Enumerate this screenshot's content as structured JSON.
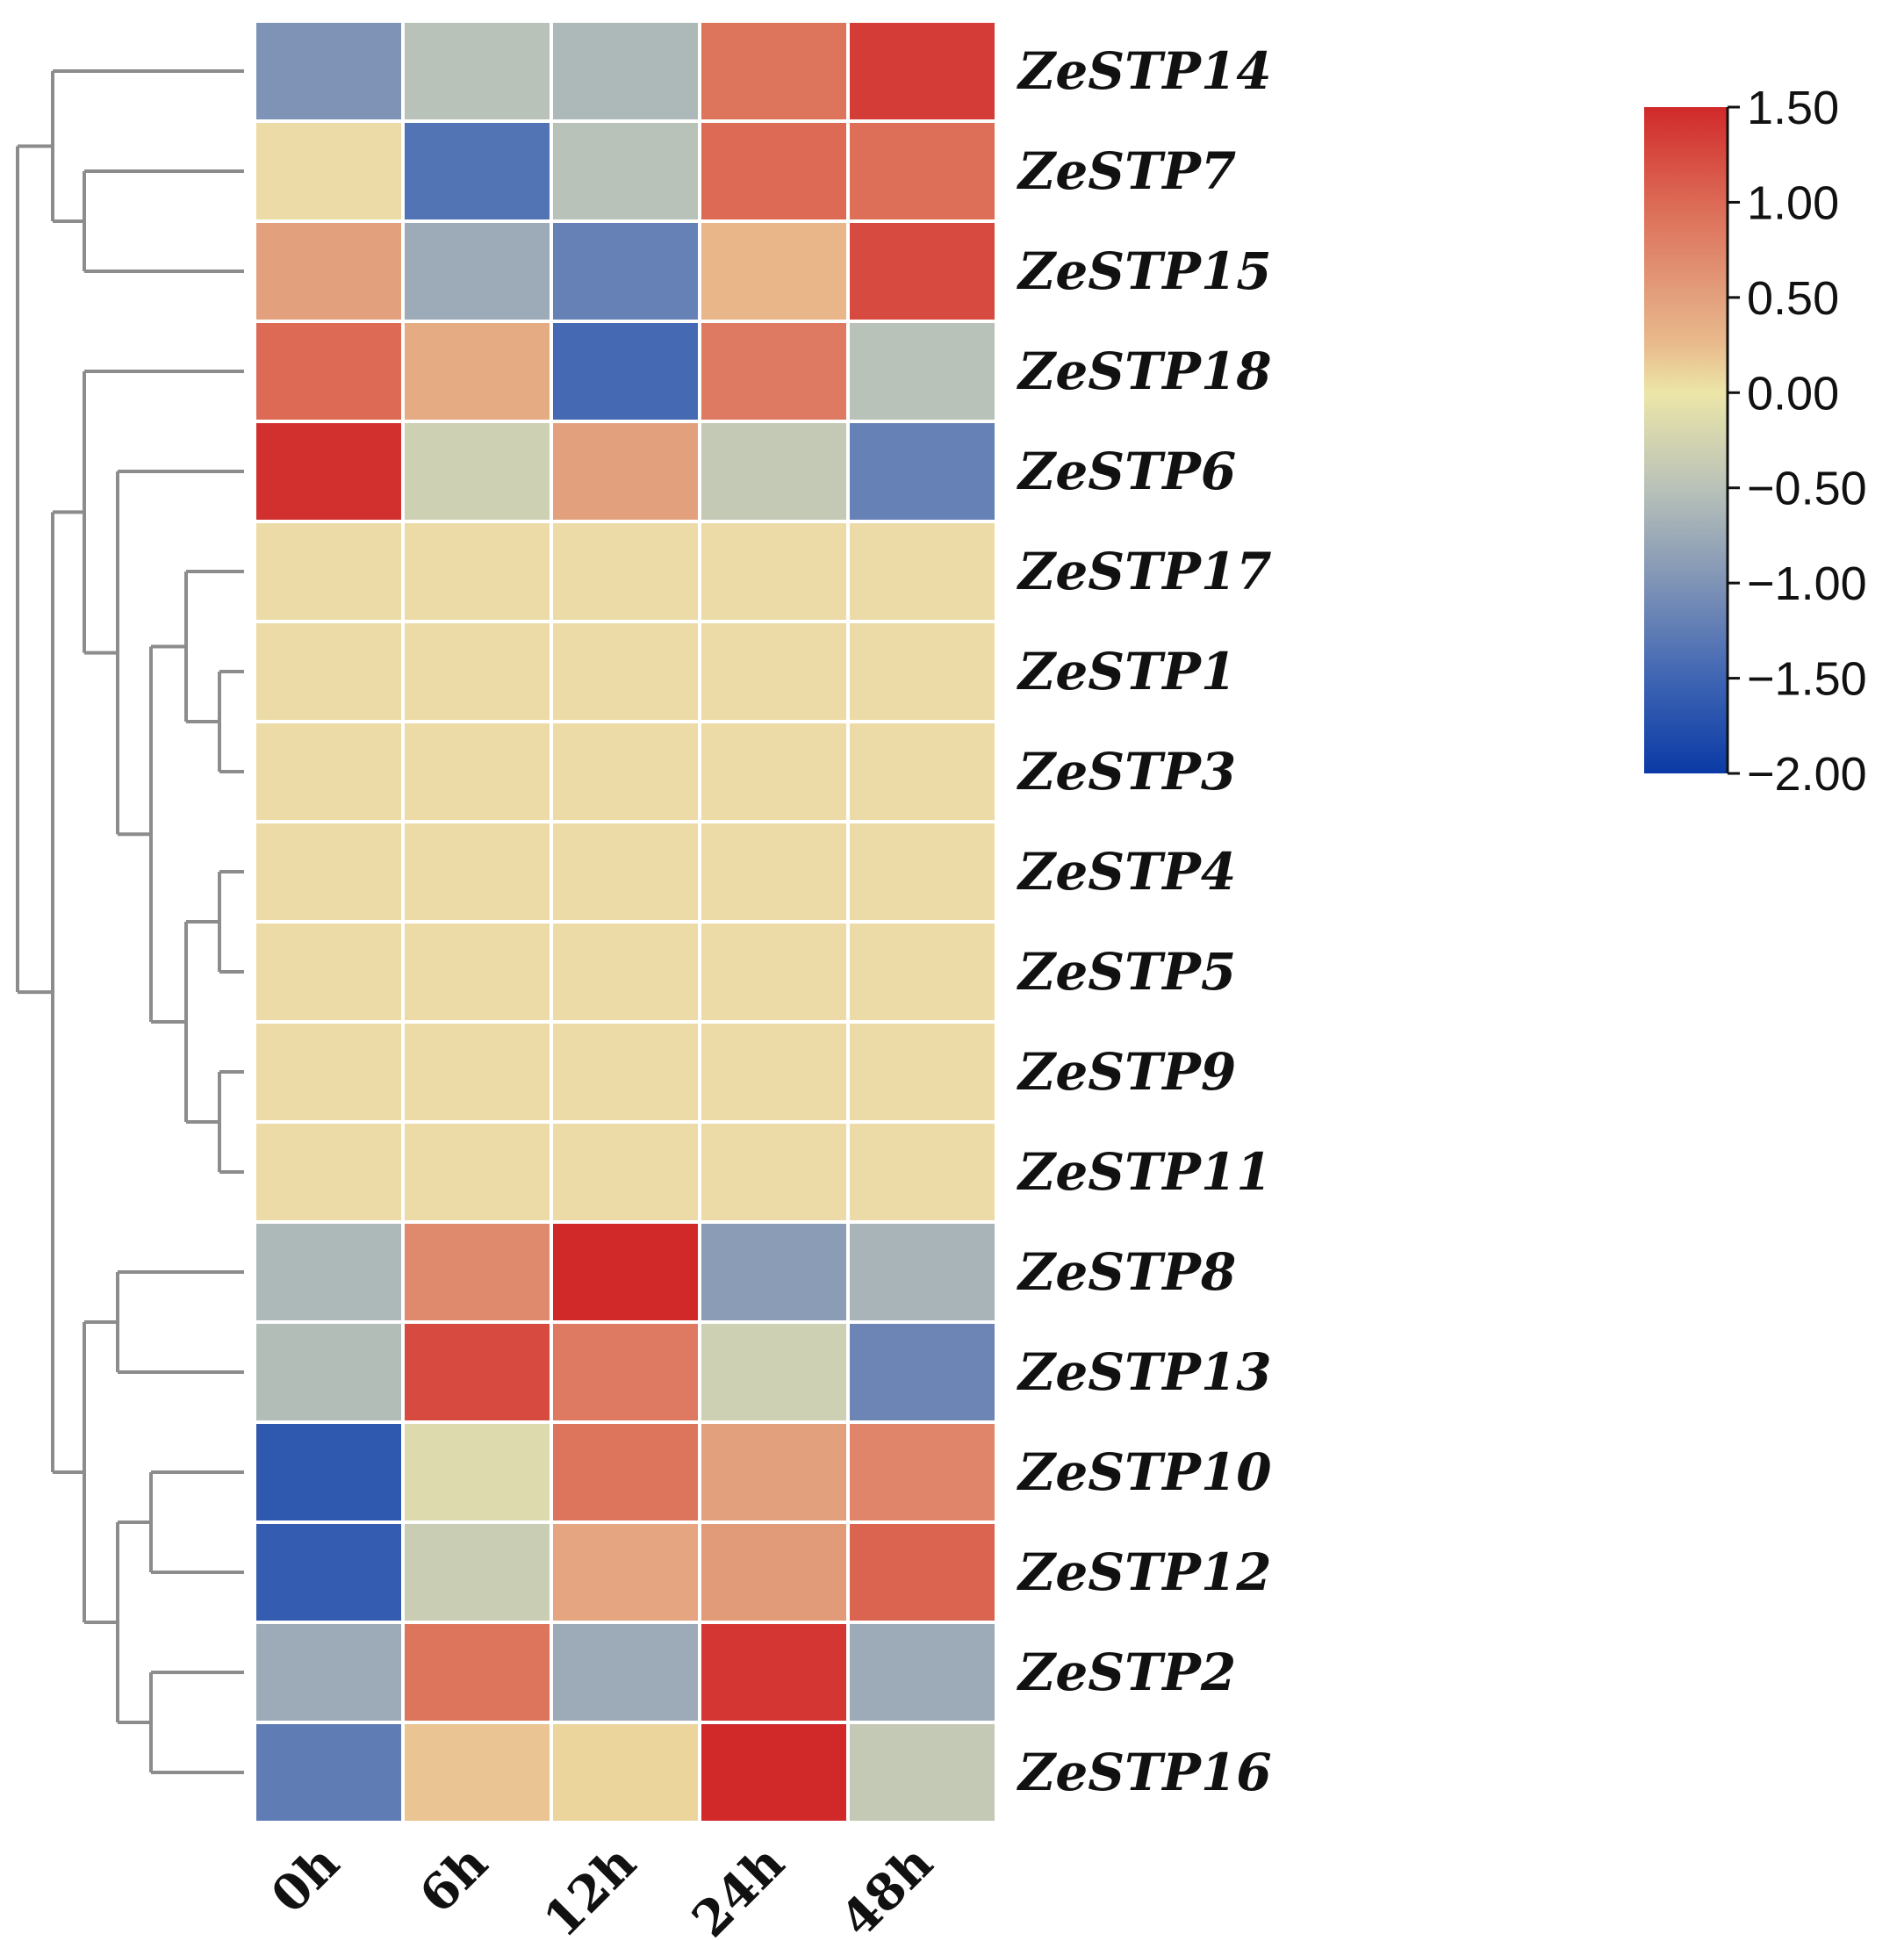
{
  "chart_data": {
    "type": "heatmap",
    "title": "",
    "xlabel": "",
    "ylabel": "",
    "columns": [
      "0h",
      "6h",
      "12h",
      "24h",
      "48h"
    ],
    "rows": [
      "ZeSTP14",
      "ZeSTP7",
      "ZeSTP15",
      "ZeSTP18",
      "ZeSTP6",
      "ZeSTP17",
      "ZeSTP1",
      "ZeSTP3",
      "ZeSTP4",
      "ZeSTP5",
      "ZeSTP9",
      "ZeSTP11",
      "ZeSTP8",
      "ZeSTP13",
      "ZeSTP10",
      "ZeSTP12",
      "ZeSTP2",
      "ZeSTP16"
    ],
    "values": [
      [
        -1.0,
        -0.5,
        -0.6,
        0.9,
        1.35
      ],
      [
        0.0,
        -1.35,
        -0.5,
        1.0,
        0.95
      ],
      [
        0.5,
        -0.75,
        -1.2,
        0.3,
        1.25
      ],
      [
        1.0,
        0.4,
        -1.45,
        0.85,
        -0.5
      ],
      [
        1.45,
        -0.3,
        0.5,
        -0.4,
        -1.2
      ],
      [
        0.0,
        0.0,
        0.0,
        0.0,
        0.0
      ],
      [
        0.0,
        0.0,
        0.0,
        0.0,
        0.0
      ],
      [
        0.0,
        0.0,
        0.0,
        0.0,
        0.0
      ],
      [
        0.0,
        0.0,
        0.0,
        0.0,
        0.0
      ],
      [
        0.0,
        0.0,
        0.0,
        0.0,
        0.0
      ],
      [
        0.0,
        0.0,
        0.0,
        0.0,
        0.0
      ],
      [
        0.0,
        0.0,
        0.0,
        0.0,
        0.0
      ],
      [
        -0.6,
        0.7,
        1.5,
        -0.9,
        -0.65
      ],
      [
        -0.55,
        1.25,
        0.85,
        -0.3,
        -1.15
      ],
      [
        -1.65,
        -0.15,
        0.9,
        0.5,
        0.75
      ],
      [
        -1.6,
        -0.35,
        0.45,
        0.55,
        1.05
      ],
      [
        -0.75,
        0.9,
        -0.75,
        1.4,
        -0.75
      ],
      [
        -1.25,
        0.2,
        0.1,
        1.5,
        -0.4
      ]
    ],
    "colorbar": {
      "min": -2.0,
      "max": 1.5,
      "ticks": [
        1.5,
        1.0,
        0.5,
        0.0,
        -0.5,
        -1.0,
        -1.5,
        -2.0
      ],
      "tick_labels": [
        "1.50",
        "1.00",
        "0.50",
        "0.00",
        "−0.50",
        "−1.00",
        "−1.50",
        "−2.00"
      ],
      "stops": [
        {
          "value": -2.0,
          "color": "#0a3aa6"
        },
        {
          "value": -1.5,
          "color": "#3f65b3"
        },
        {
          "value": -1.0,
          "color": "#7f93b6"
        },
        {
          "value": -0.5,
          "color": "#b9c2b8"
        },
        {
          "value": 0.0,
          "color": "#ece6a8"
        },
        {
          "value": 0.25,
          "color": "#e9bb8c"
        },
        {
          "value": 0.5,
          "color": "#e3a07d"
        },
        {
          "value": 1.0,
          "color": "#dc6a55"
        },
        {
          "value": 1.5,
          "color": "#d1292a"
        }
      ],
      "nan_like_zero_color": "#ecdba7"
    },
    "dendrogram_side": "left",
    "colors": {
      "cell_border": "#ffffff",
      "dendrogram": "#8c8c8c",
      "text": "#111111"
    }
  }
}
